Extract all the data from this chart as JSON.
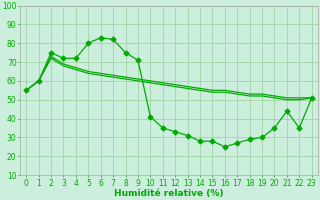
{
  "x": [
    0,
    1,
    2,
    3,
    4,
    5,
    6,
    7,
    8,
    9,
    10,
    11,
    12,
    13,
    14,
    15,
    16,
    17,
    18,
    19,
    20,
    21,
    22,
    23
  ],
  "line1_y": [
    55,
    60,
    75,
    72,
    72,
    80,
    83,
    82,
    75,
    71,
    41,
    35,
    33,
    31,
    28,
    28,
    25,
    27,
    29,
    30,
    35,
    44,
    35,
    51
  ],
  "line2_y": [
    55,
    60,
    73,
    69,
    67,
    65,
    64,
    63,
    62,
    61,
    60,
    59,
    58,
    57,
    56,
    55,
    55,
    54,
    53,
    53,
    52,
    51,
    51,
    51
  ],
  "line3_y": [
    55,
    60,
    72,
    68,
    66,
    64,
    63,
    62,
    61,
    60,
    59,
    58,
    57,
    56,
    55,
    54,
    54,
    53,
    52,
    52,
    51,
    50,
    50,
    51
  ],
  "line_color": "#00aa00",
  "bg_color": "#cceedd",
  "grid_color": "#99cc99",
  "xlabel": "Humidité relative (%)",
  "xlim_min": -0.5,
  "xlim_max": 23.5,
  "ylim_min": 10,
  "ylim_max": 100,
  "yticks": [
    10,
    20,
    30,
    40,
    50,
    60,
    70,
    80,
    90,
    100
  ],
  "xlabel_fontsize": 6.5,
  "tick_fontsize": 5.5,
  "marker": "D",
  "marker_size": 2.5,
  "line_width": 0.9
}
